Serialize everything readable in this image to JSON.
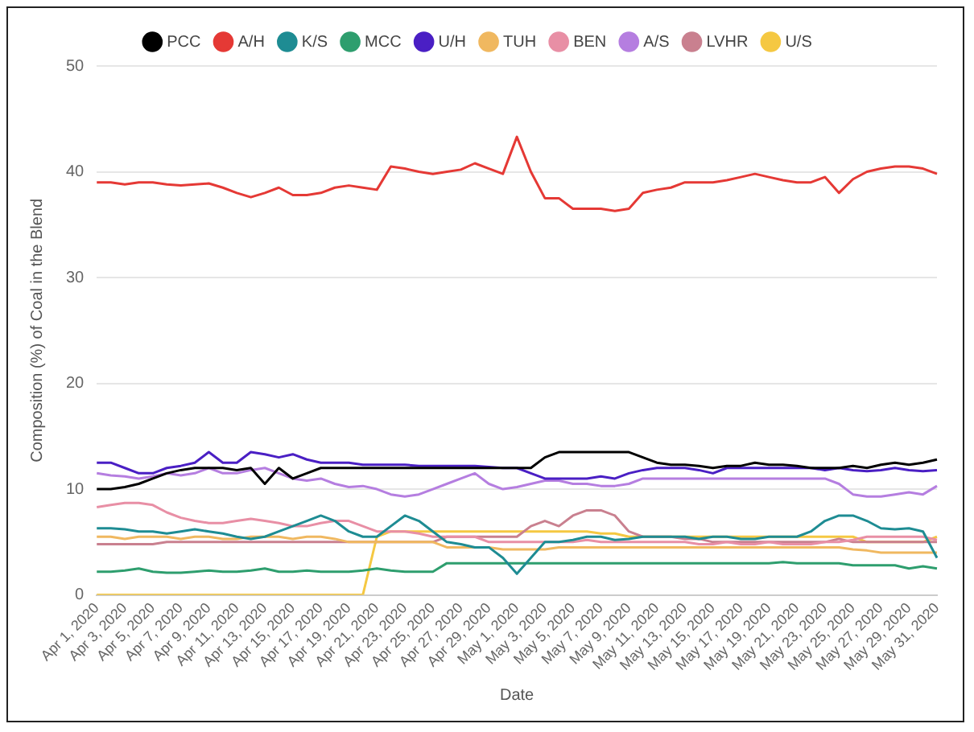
{
  "chart_data": {
    "type": "line",
    "xlabel": "Date",
    "ylabel": "Composition (%) of Coal in the Blend",
    "categories": [
      "Apr 1, 2020",
      null,
      "Apr 3, 2020",
      null,
      "Apr 5, 2020",
      null,
      "Apr 7, 2020",
      null,
      "Apr 9, 2020",
      null,
      "Apr 11, 2020",
      null,
      "Apr 13, 2020",
      null,
      "Apr 15, 2020",
      null,
      "Apr 17, 2020",
      null,
      "Apr 19, 2020",
      null,
      "Apr 21, 2020",
      null,
      "Apr 23, 2020",
      null,
      "Apr 25, 2020",
      null,
      "Apr 27, 2020",
      null,
      "Apr 29, 2020",
      null,
      "May 1, 2020",
      null,
      "May 3, 2020",
      null,
      "May 5, 2020",
      null,
      "May 7, 2020",
      null,
      "May 9, 2020",
      null,
      "May 11, 2020",
      null,
      "May 13, 2020",
      null,
      "May 15, 2020",
      null,
      "May 17, 2020",
      null,
      "May 19, 2020",
      null,
      "May 21, 2020",
      null,
      "May 23, 2020",
      null,
      "May 25, 2020",
      null,
      "May 27, 2020",
      null,
      "May 29, 2020",
      null,
      "May 31, 2020"
    ],
    "series": [
      {
        "name": "PCC",
        "color": "#000000",
        "values": [
          10,
          10,
          10.2,
          10.5,
          11,
          11.5,
          11.8,
          12,
          12,
          12,
          11.8,
          12,
          10.5,
          12,
          11,
          11.5,
          12,
          12,
          12,
          12,
          12,
          12,
          12,
          12,
          12,
          12,
          12,
          12,
          12,
          12,
          12,
          12,
          13,
          13.5,
          13.5,
          13.5,
          13.5,
          13.5,
          13.5,
          13,
          12.5,
          12.3,
          12.3,
          12.2,
          12,
          12.2,
          12.2,
          12.5,
          12.3,
          12.3,
          12.2,
          12,
          12,
          12,
          12.2,
          12,
          12.3,
          12.5,
          12.3,
          12.5,
          12.8
        ]
      },
      {
        "name": "A/H",
        "color": "#e53935",
        "values": [
          39,
          39,
          38.8,
          39,
          39,
          38.8,
          38.7,
          38.8,
          38.9,
          38.5,
          38,
          37.6,
          38,
          38.5,
          37.8,
          37.8,
          38,
          38.5,
          38.7,
          38.5,
          38.3,
          40.5,
          40.3,
          40,
          39.8,
          40,
          40.2,
          40.8,
          40.3,
          39.8,
          43.3,
          40,
          37.5,
          37.5,
          36.5,
          36.5,
          36.5,
          36.3,
          36.5,
          38,
          38.3,
          38.5,
          39,
          39,
          39,
          39.2,
          39.5,
          39.8,
          39.5,
          39.2,
          39,
          39,
          39.5,
          38,
          39.3,
          40,
          40.3,
          40.5,
          40.5,
          40.3,
          39.8
        ]
      },
      {
        "name": "K/S",
        "color": "#1e8c93",
        "values": [
          6.3,
          6.3,
          6.2,
          6,
          6,
          5.8,
          6,
          6.2,
          6,
          5.8,
          5.5,
          5.3,
          5.5,
          6,
          6.5,
          7,
          7.5,
          7,
          6,
          5.5,
          5.5,
          6.5,
          7.5,
          7,
          6,
          5,
          4.8,
          4.5,
          4.5,
          3.5,
          2,
          3.5,
          5,
          5,
          5.2,
          5.5,
          5.5,
          5.2,
          5.3,
          5.5,
          5.5,
          5.5,
          5.5,
          5.3,
          5.5,
          5.5,
          5.3,
          5.3,
          5.5,
          5.5,
          5.5,
          6,
          7,
          7.5,
          7.5,
          7,
          6.3,
          6.2,
          6.3,
          6,
          3.5
        ]
      },
      {
        "name": "MCC",
        "color": "#2e9e6e",
        "values": [
          2.2,
          2.2,
          2.3,
          2.5,
          2.2,
          2.1,
          2.1,
          2.2,
          2.3,
          2.2,
          2.2,
          2.3,
          2.5,
          2.2,
          2.2,
          2.3,
          2.2,
          2.2,
          2.2,
          2.3,
          2.5,
          2.3,
          2.2,
          2.2,
          2.2,
          3,
          3,
          3,
          3,
          3,
          3,
          3,
          3,
          3,
          3,
          3,
          3,
          3,
          3,
          3,
          3,
          3,
          3,
          3,
          3,
          3,
          3,
          3,
          3,
          3.1,
          3,
          3,
          3,
          3,
          2.8,
          2.8,
          2.8,
          2.8,
          2.5,
          2.7,
          2.5
        ]
      },
      {
        "name": "U/H",
        "color": "#4a1fc4",
        "values": [
          12.5,
          12.5,
          12,
          11.5,
          11.5,
          12,
          12.2,
          12.5,
          13.5,
          12.5,
          12.5,
          13.5,
          13.3,
          13,
          13.3,
          12.8,
          12.5,
          12.5,
          12.5,
          12.3,
          12.3,
          12.3,
          12.3,
          12.2,
          12.2,
          12.2,
          12.2,
          12.2,
          12.1,
          12,
          12,
          11.5,
          11,
          11,
          11,
          11,
          11.2,
          11,
          11.5,
          11.8,
          12,
          12,
          12,
          11.8,
          11.5,
          12,
          12,
          12,
          12,
          12,
          12,
          12,
          11.8,
          12,
          11.8,
          11.7,
          11.8,
          12,
          11.8,
          11.7,
          11.8
        ]
      },
      {
        "name": "TUH",
        "color": "#f0b860",
        "values": [
          5.5,
          5.5,
          5.3,
          5.5,
          5.5,
          5.5,
          5.3,
          5.5,
          5.5,
          5.3,
          5.3,
          5.5,
          5.5,
          5.5,
          5.3,
          5.5,
          5.5,
          5.3,
          5,
          5,
          5,
          5,
          5,
          5,
          5,
          4.5,
          4.5,
          4.5,
          4.5,
          4.3,
          4.3,
          4.3,
          4.3,
          4.5,
          4.5,
          4.5,
          4.5,
          4.5,
          4.5,
          4.5,
          4.5,
          4.5,
          4.5,
          4.5,
          4.5,
          4.5,
          4.5,
          4.5,
          4.5,
          4.5,
          4.5,
          4.5,
          4.5,
          4.5,
          4.3,
          4.2,
          4,
          4,
          4,
          4,
          4
        ]
      },
      {
        "name": "BEN",
        "color": "#e88fa5",
        "values": [
          8.3,
          8.5,
          8.7,
          8.7,
          8.5,
          7.8,
          7.3,
          7,
          6.8,
          6.8,
          7,
          7.2,
          7,
          6.8,
          6.5,
          6.5,
          6.8,
          7,
          7,
          6.5,
          6,
          6,
          6,
          5.8,
          5.5,
          5.5,
          5.5,
          5.5,
          5,
          5,
          5,
          5,
          5,
          5,
          5,
          5.2,
          5,
          5,
          5,
          5,
          5,
          5,
          5,
          4.8,
          4.8,
          5,
          4.8,
          4.8,
          5,
          4.8,
          4.8,
          4.8,
          5,
          5,
          5.2,
          5.5,
          5.5,
          5.5,
          5.5,
          5.5,
          5.2
        ]
      },
      {
        "name": "A/S",
        "color": "#b57ee0",
        "values": [
          11.5,
          11.3,
          11.2,
          11,
          11.2,
          11.5,
          11.3,
          11.5,
          12,
          11.5,
          11.5,
          11.8,
          12,
          11.5,
          11,
          10.8,
          11,
          10.5,
          10.2,
          10.3,
          10,
          9.5,
          9.3,
          9.5,
          10,
          10.5,
          11,
          11.5,
          10.5,
          10,
          10.2,
          10.5,
          10.8,
          10.8,
          10.5,
          10.5,
          10.3,
          10.3,
          10.5,
          11,
          11,
          11,
          11,
          11,
          11,
          11,
          11,
          11,
          11,
          11,
          11,
          11,
          11,
          10.5,
          9.5,
          9.3,
          9.3,
          9.5,
          9.7,
          9.5,
          10.3
        ]
      },
      {
        "name": "LVHR",
        "color": "#c9808f",
        "values": [
          4.8,
          4.8,
          4.8,
          4.8,
          4.8,
          5,
          5,
          5,
          5,
          5,
          5,
          5,
          5,
          5,
          5,
          5,
          5,
          5,
          5,
          5,
          5,
          5,
          5,
          5,
          5,
          5.5,
          5.5,
          5.5,
          5.5,
          5.5,
          5.5,
          6.5,
          7,
          6.5,
          7.5,
          8,
          8,
          7.5,
          6,
          5.5,
          5.5,
          5.5,
          5.3,
          5.3,
          5,
          5,
          5,
          5,
          5,
          5,
          5,
          5,
          5,
          5.3,
          5,
          5,
          5,
          5,
          5,
          5,
          5
        ]
      },
      {
        "name": "U/S",
        "color": "#f5c842",
        "values": [
          0,
          0,
          0,
          0,
          0,
          0,
          0,
          0,
          0,
          0,
          0,
          0,
          0,
          0,
          0,
          0,
          0,
          0,
          0,
          0,
          5.5,
          6,
          6,
          6,
          6,
          6,
          6,
          6,
          6,
          6,
          6,
          6,
          6,
          6,
          6,
          6,
          5.8,
          5.8,
          5.5,
          5.5,
          5.5,
          5.5,
          5.5,
          5.5,
          5.5,
          5.5,
          5.5,
          5.5,
          5.5,
          5.5,
          5.5,
          5.5,
          5.5,
          5.5,
          5.5,
          5,
          5,
          5,
          5,
          5,
          5.5
        ]
      }
    ],
    "ylim": [
      0,
      50
    ],
    "yticks": [
      0,
      10,
      20,
      30,
      40,
      50
    ],
    "grid": "y",
    "legend": "top",
    "marker": "none",
    "line_style": "solid"
  }
}
